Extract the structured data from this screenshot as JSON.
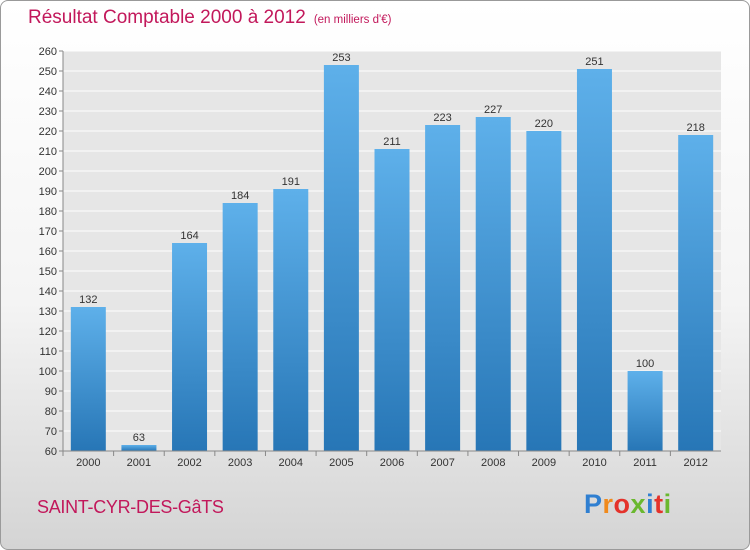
{
  "header": {
    "title": "Résultat Comptable 2000 à 2012",
    "subtitle": "(en milliers d'€)"
  },
  "footer": {
    "commune": "SAINT-CYR-DES-GâTS",
    "logo_text": "Proxiti"
  },
  "colors": {
    "title": "#c2185b",
    "bar_top": "#5eb0ea",
    "bar_bottom": "#2776b6",
    "logo_letters": [
      "#2f7fd1",
      "#f08a1c",
      "#e4322b",
      "#6ab82f",
      "#2f7fd1",
      "#e4322b",
      "#6ab82f"
    ]
  },
  "chart_data": {
    "type": "bar",
    "title": "Résultat Comptable 2000 à 2012",
    "subtitle": "(en milliers d'€)",
    "categories": [
      "2000",
      "2001",
      "2002",
      "2003",
      "2004",
      "2005",
      "2006",
      "2007",
      "2008",
      "2009",
      "2010",
      "2011",
      "2012"
    ],
    "values": [
      132,
      63,
      164,
      184,
      191,
      253,
      211,
      223,
      227,
      220,
      251,
      100,
      218
    ],
    "xlabel": "",
    "ylabel": "",
    "ylim": [
      60,
      260
    ],
    "yticks": [
      60,
      70,
      80,
      90,
      100,
      110,
      120,
      130,
      140,
      150,
      160,
      170,
      180,
      190,
      200,
      210,
      220,
      230,
      240,
      250,
      260
    ],
    "grid": true,
    "data_labels": true,
    "legend": "none"
  }
}
